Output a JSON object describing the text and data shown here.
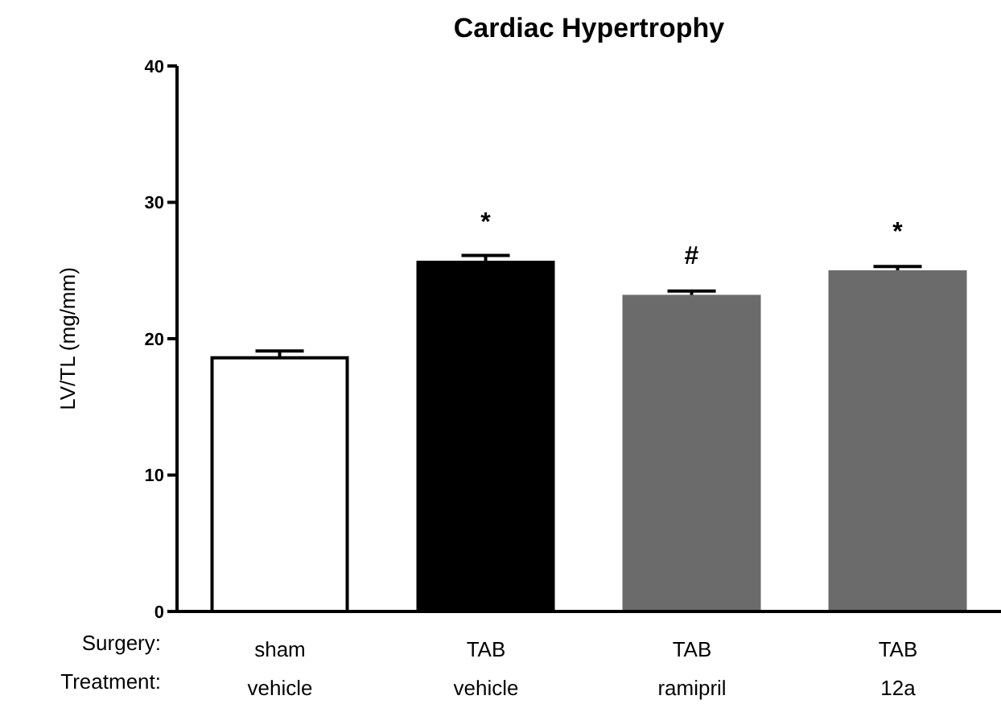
{
  "chart_data": {
    "type": "bar",
    "title": "Cardiac Hypertrophy",
    "ylabel": "LV/TL (mg/mm)",
    "categories": [
      "sham\nvehicle",
      "TAB\nvehicle",
      "TAB\nramipril",
      "TAB\n12a"
    ],
    "values": [
      18.6,
      25.6,
      23.1,
      24.9
    ],
    "errors": [
      0.5,
      0.5,
      0.4,
      0.4
    ],
    "value_labels": [
      null,
      "*",
      "#",
      "*"
    ],
    "colors": [
      "#ffffff",
      "#000000",
      "#6b6b6b",
      "#6b6b6b"
    ],
    "ylim": [
      0,
      40
    ],
    "yticks": [
      0,
      10,
      20,
      30,
      40
    ],
    "grid": false,
    "legend": false,
    "annotations": [
      "Surgery:",
      "Treatment:"
    ]
  }
}
